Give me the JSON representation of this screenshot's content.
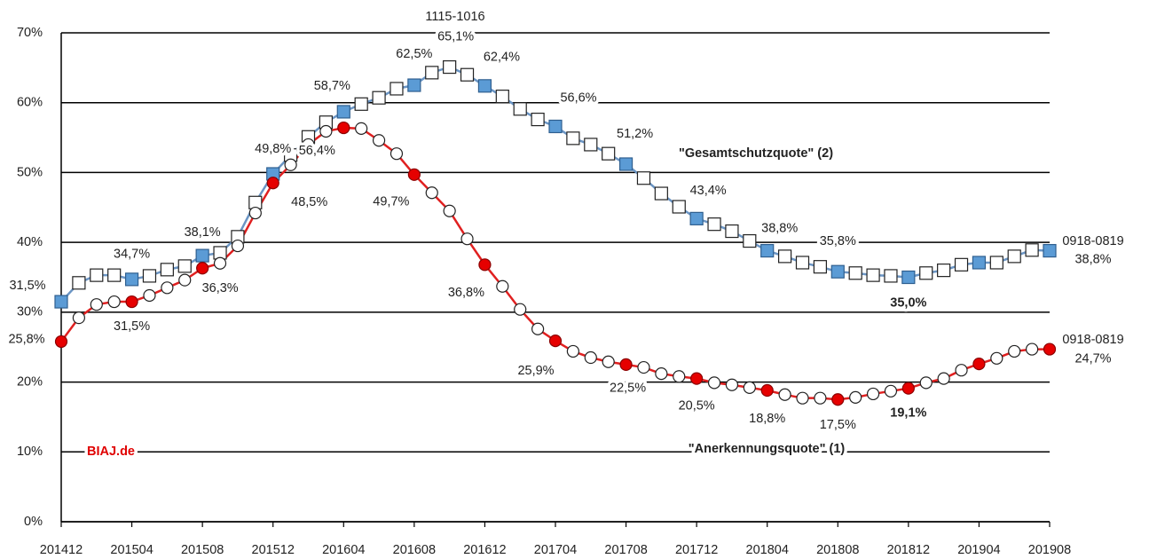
{
  "chart_data": {
    "type": "line",
    "categories": [
      "201412",
      null,
      null,
      null,
      "201504",
      null,
      null,
      null,
      "201508",
      null,
      null,
      null,
      "201512",
      null,
      null,
      null,
      "201604",
      null,
      null,
      null,
      "201608",
      null,
      null,
      null,
      "201612",
      null,
      null,
      null,
      "201704",
      null,
      null,
      null,
      "201708",
      null,
      null,
      null,
      "201712",
      null,
      null,
      null,
      "201804",
      null,
      null,
      null,
      "201808",
      null,
      null,
      null,
      "201812",
      null,
      null,
      null,
      "201904",
      null,
      null,
      null,
      "201908"
    ],
    "series": [
      {
        "name": "\"Gesamtschutzquote\" (2)",
        "color": "#5b9bd5",
        "line_color": "#6b95c4",
        "marker": "square",
        "values": [
          31.5,
          34.2,
          35.3,
          35.3,
          34.7,
          35.2,
          36.1,
          36.6,
          38.1,
          38.5,
          40.8,
          45.7,
          49.8,
          52.5,
          55.1,
          57.2,
          58.7,
          59.8,
          60.7,
          62.0,
          62.5,
          64.3,
          65.1,
          64.0,
          62.4,
          60.9,
          59.1,
          57.6,
          56.6,
          54.9,
          54.0,
          52.7,
          51.2,
          49.2,
          47.0,
          45.1,
          43.4,
          42.6,
          41.6,
          40.2,
          38.8,
          38.0,
          37.1,
          36.5,
          35.8,
          35.6,
          35.3,
          35.2,
          35.0,
          35.6,
          36.0,
          36.8,
          37.1,
          37.1,
          38.0,
          38.9,
          38.8
        ],
        "value_labels": [
          "31,5%",
          null,
          null,
          null,
          "34,7%",
          null,
          null,
          null,
          "38,1%",
          null,
          null,
          null,
          "49,8%",
          null,
          null,
          null,
          "58,7%",
          null,
          null,
          null,
          "62,5%",
          null,
          "65,1%",
          null,
          "62,4%",
          null,
          null,
          null,
          "56,6%",
          null,
          null,
          null,
          "51,2%",
          null,
          null,
          null,
          "43,4%",
          null,
          null,
          null,
          "38,8%",
          null,
          null,
          null,
          "35,8%",
          null,
          null,
          null,
          "35,0%",
          null,
          null,
          null,
          null,
          null,
          null,
          null,
          "38,8%"
        ]
      },
      {
        "name": "\"Anerkennungsquote\" (1)",
        "color": "#e60000",
        "line_color": "#e02020",
        "marker": "circle",
        "values": [
          25.8,
          29.2,
          31.1,
          31.5,
          31.5,
          32.4,
          33.5,
          34.6,
          36.3,
          37.0,
          39.5,
          44.2,
          48.5,
          51.1,
          54.0,
          55.9,
          56.4,
          56.3,
          54.6,
          52.7,
          49.7,
          47.1,
          44.5,
          40.5,
          36.8,
          33.7,
          30.4,
          27.6,
          25.9,
          24.4,
          23.5,
          22.9,
          22.5,
          22.1,
          21.2,
          20.8,
          20.5,
          19.9,
          19.6,
          19.2,
          18.8,
          18.2,
          17.7,
          17.7,
          17.5,
          17.8,
          18.3,
          18.7,
          19.1,
          19.9,
          20.5,
          21.7,
          22.6,
          23.4,
          24.4,
          24.7,
          24.7
        ],
        "value_labels": [
          "25,8%",
          null,
          null,
          null,
          "31,5%",
          null,
          null,
          null,
          "36,3%",
          null,
          null,
          null,
          "48,5%",
          null,
          null,
          null,
          "56,4%",
          null,
          null,
          null,
          "49,7%",
          null,
          null,
          null,
          "36,8%",
          null,
          null,
          null,
          "25,9%",
          null,
          null,
          null,
          "22,5%",
          null,
          null,
          null,
          "20,5%",
          null,
          null,
          null,
          "18,8%",
          null,
          null,
          null,
          "17,5%",
          null,
          null,
          null,
          "19,1%",
          null,
          null,
          null,
          null,
          null,
          null,
          null,
          "24,7%"
        ]
      }
    ],
    "annotations": [
      "1115-1016",
      "0918-0819",
      "0918-0819",
      "BIAJ.de"
    ],
    "ylim": [
      0,
      70
    ],
    "yticks": [
      {
        "value": 0,
        "label": "0%"
      },
      {
        "value": 10,
        "label": "10%"
      },
      {
        "value": 20,
        "label": "20%"
      },
      {
        "value": 30,
        "label": "30%"
      },
      {
        "value": 40,
        "label": "40%"
      },
      {
        "value": 50,
        "label": "50%"
      },
      {
        "value": 60,
        "label": "60%"
      },
      {
        "value": 70,
        "label": "70%"
      }
    ],
    "grid": true
  }
}
